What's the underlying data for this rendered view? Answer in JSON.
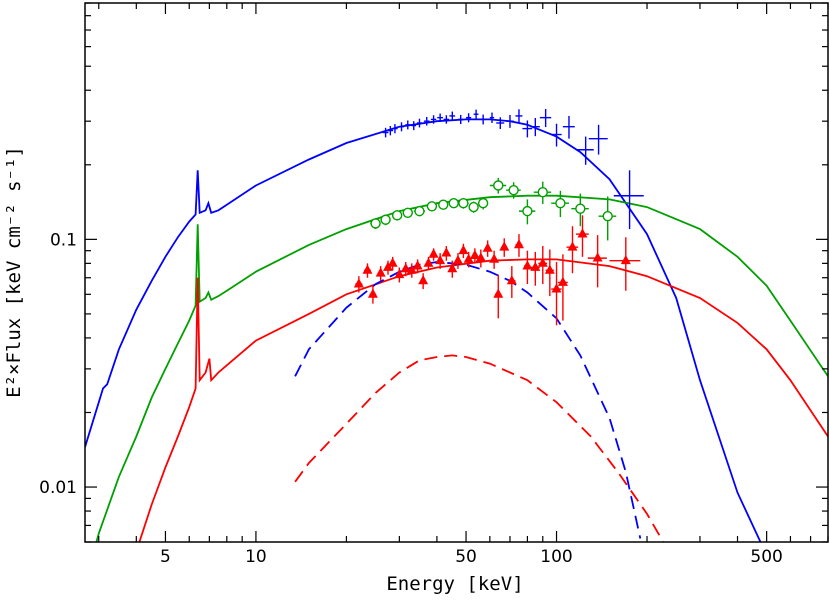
{
  "chart_data": {
    "type": "line",
    "title": "",
    "xlabel": "Energy [keV]",
    "ylabel": "E²×Flux [keV cm⁻² s⁻¹]",
    "x_scale": "log",
    "y_scale": "log",
    "xlim": [
      2.7,
      800
    ],
    "ylim": [
      0.006,
      0.9
    ],
    "grid": false,
    "legend": "none",
    "x_ticks": [
      {
        "value": 5,
        "label": "5"
      },
      {
        "value": 10,
        "label": "10"
      },
      {
        "value": 50,
        "label": "50"
      },
      {
        "value": 100,
        "label": "100"
      },
      {
        "value": 500,
        "label": "500"
      }
    ],
    "y_ticks": [
      {
        "value": 0.01,
        "label": "0.01"
      },
      {
        "value": 0.1,
        "label": "0.1"
      }
    ],
    "series": [
      {
        "kind": "model",
        "color": "#0000ff",
        "dash": false,
        "points": [
          [
            2.7,
            0.0145
          ],
          [
            3.0,
            0.022
          ],
          [
            3.1,
            0.025
          ],
          [
            3.2,
            0.026
          ],
          [
            3.5,
            0.036
          ],
          [
            4.0,
            0.052
          ],
          [
            4.5,
            0.068
          ],
          [
            5.0,
            0.085
          ],
          [
            5.5,
            0.102
          ],
          [
            6.0,
            0.118
          ],
          [
            6.3,
            0.126
          ],
          [
            6.4,
            0.19
          ],
          [
            6.5,
            0.128
          ],
          [
            6.8,
            0.131
          ],
          [
            6.95,
            0.14
          ],
          [
            7.1,
            0.128
          ],
          [
            7.5,
            0.131
          ],
          [
            8,
            0.138
          ],
          [
            10,
            0.165
          ],
          [
            15,
            0.21
          ],
          [
            20,
            0.245
          ],
          [
            30,
            0.285
          ],
          [
            40,
            0.3
          ],
          [
            50,
            0.305
          ],
          [
            60,
            0.305
          ],
          [
            70,
            0.3
          ],
          [
            80,
            0.29
          ],
          [
            100,
            0.26
          ],
          [
            120,
            0.225
          ],
          [
            150,
            0.175
          ],
          [
            200,
            0.105
          ],
          [
            250,
            0.058
          ],
          [
            300,
            0.027
          ],
          [
            400,
            0.0095
          ],
          [
            480,
            0.0059
          ]
        ]
      },
      {
        "kind": "model",
        "color": "#00a000",
        "dash": false,
        "points": [
          [
            2.8,
            0.0048
          ],
          [
            3.0,
            0.0065
          ],
          [
            3.5,
            0.011
          ],
          [
            4.0,
            0.016
          ],
          [
            4.5,
            0.023
          ],
          [
            5.0,
            0.03
          ],
          [
            5.5,
            0.038
          ],
          [
            6.0,
            0.047
          ],
          [
            6.3,
            0.054
          ],
          [
            6.4,
            0.115
          ],
          [
            6.5,
            0.056
          ],
          [
            6.8,
            0.058
          ],
          [
            6.95,
            0.061
          ],
          [
            7.1,
            0.057
          ],
          [
            7.5,
            0.059
          ],
          [
            8,
            0.062
          ],
          [
            10,
            0.074
          ],
          [
            15,
            0.095
          ],
          [
            20,
            0.11
          ],
          [
            30,
            0.13
          ],
          [
            40,
            0.14
          ],
          [
            60,
            0.148
          ],
          [
            80,
            0.15
          ],
          [
            100,
            0.15
          ],
          [
            150,
            0.145
          ],
          [
            200,
            0.135
          ],
          [
            300,
            0.11
          ],
          [
            400,
            0.085
          ],
          [
            500,
            0.065
          ],
          [
            600,
            0.047
          ],
          [
            800,
            0.028
          ]
        ]
      },
      {
        "kind": "model",
        "color": "#ff0000",
        "dash": false,
        "points": [
          [
            4.0,
            0.0055
          ],
          [
            4.5,
            0.0085
          ],
          [
            5.0,
            0.012
          ],
          [
            5.5,
            0.016
          ],
          [
            6.0,
            0.021
          ],
          [
            6.3,
            0.025
          ],
          [
            6.4,
            0.07
          ],
          [
            6.5,
            0.027
          ],
          [
            6.8,
            0.029
          ],
          [
            7.0,
            0.033
          ],
          [
            7.1,
            0.027
          ],
          [
            7.5,
            0.029
          ],
          [
            8,
            0.031
          ],
          [
            10,
            0.039
          ],
          [
            15,
            0.05
          ],
          [
            20,
            0.06
          ],
          [
            30,
            0.071
          ],
          [
            40,
            0.077
          ],
          [
            60,
            0.082
          ],
          [
            80,
            0.083
          ],
          [
            100,
            0.083
          ],
          [
            150,
            0.078
          ],
          [
            200,
            0.071
          ],
          [
            300,
            0.058
          ],
          [
            400,
            0.046
          ],
          [
            500,
            0.036
          ],
          [
            600,
            0.027
          ],
          [
            800,
            0.016
          ]
        ]
      },
      {
        "kind": "component",
        "color": "#0000ff",
        "dash": true,
        "points": [
          [
            13.5,
            0.028
          ],
          [
            15,
            0.036
          ],
          [
            20,
            0.053
          ],
          [
            25,
            0.066
          ],
          [
            30,
            0.074
          ],
          [
            35,
            0.079
          ],
          [
            40,
            0.081
          ],
          [
            45,
            0.08
          ],
          [
            50,
            0.079
          ],
          [
            60,
            0.074
          ],
          [
            70,
            0.068
          ],
          [
            80,
            0.061
          ],
          [
            100,
            0.048
          ],
          [
            120,
            0.034
          ],
          [
            150,
            0.019
          ],
          [
            170,
            0.0115
          ],
          [
            190,
            0.0062
          ]
        ]
      },
      {
        "kind": "component",
        "color": "#ff0000",
        "dash": true,
        "points": [
          [
            13.5,
            0.0105
          ],
          [
            15,
            0.0125
          ],
          [
            20,
            0.018
          ],
          [
            25,
            0.024
          ],
          [
            30,
            0.029
          ],
          [
            35,
            0.0325
          ],
          [
            40,
            0.0335
          ],
          [
            45,
            0.034
          ],
          [
            50,
            0.0335
          ],
          [
            60,
            0.0315
          ],
          [
            80,
            0.027
          ],
          [
            100,
            0.022
          ],
          [
            130,
            0.016
          ],
          [
            160,
            0.0115
          ],
          [
            200,
            0.0078
          ],
          [
            230,
            0.0058
          ]
        ]
      },
      {
        "kind": "data",
        "color": "#0000ff",
        "marker": "none",
        "points": [
          {
            "x": 27,
            "y": 0.27,
            "xerr": 0.6,
            "yerr": 0.012
          },
          {
            "x": 28,
            "y": 0.275,
            "xerr": 0.6,
            "yerr": 0.012
          },
          {
            "x": 29,
            "y": 0.28,
            "xerr": 0.6,
            "yerr": 0.012
          },
          {
            "x": 30.5,
            "y": 0.285,
            "xerr": 0.6,
            "yerr": 0.012
          },
          {
            "x": 32,
            "y": 0.29,
            "xerr": 0.6,
            "yerr": 0.012
          },
          {
            "x": 33.5,
            "y": 0.288,
            "xerr": 0.6,
            "yerr": 0.012
          },
          {
            "x": 35,
            "y": 0.295,
            "xerr": 0.7,
            "yerr": 0.012
          },
          {
            "x": 37,
            "y": 0.3,
            "xerr": 0.8,
            "yerr": 0.012
          },
          {
            "x": 39,
            "y": 0.305,
            "xerr": 0.8,
            "yerr": 0.012
          },
          {
            "x": 41,
            "y": 0.31,
            "xerr": 0.9,
            "yerr": 0.012
          },
          {
            "x": 43,
            "y": 0.305,
            "xerr": 0.9,
            "yerr": 0.012
          },
          {
            "x": 45,
            "y": 0.315,
            "xerr": 1.0,
            "yerr": 0.013
          },
          {
            "x": 48,
            "y": 0.305,
            "xerr": 1.0,
            "yerr": 0.013
          },
          {
            "x": 51,
            "y": 0.31,
            "xerr": 1.0,
            "yerr": 0.013
          },
          {
            "x": 54,
            "y": 0.32,
            "xerr": 1.0,
            "yerr": 0.014
          },
          {
            "x": 57,
            "y": 0.305,
            "xerr": 1.0,
            "yerr": 0.014
          },
          {
            "x": 61,
            "y": 0.31,
            "xerr": 1.0,
            "yerr": 0.015
          },
          {
            "x": 65,
            "y": 0.295,
            "xerr": 2,
            "yerr": 0.016
          },
          {
            "x": 70,
            "y": 0.3,
            "xerr": 2,
            "yerr": 0.018
          },
          {
            "x": 75,
            "y": 0.315,
            "xerr": 2,
            "yerr": 0.02
          },
          {
            "x": 80,
            "y": 0.28,
            "xerr": 3,
            "yerr": 0.022
          },
          {
            "x": 85,
            "y": 0.285,
            "xerr": 3,
            "yerr": 0.024
          },
          {
            "x": 92,
            "y": 0.31,
            "xerr": 4,
            "yerr": 0.026
          },
          {
            "x": 100,
            "y": 0.265,
            "xerr": 4,
            "yerr": 0.028
          },
          {
            "x": 110,
            "y": 0.285,
            "xerr": 5,
            "yerr": 0.03
          },
          {
            "x": 125,
            "y": 0.23,
            "xerr": 8,
            "yerr": 0.03
          },
          {
            "x": 138,
            "y": 0.255,
            "xerr": 10,
            "yerr": 0.035
          },
          {
            "x": 175,
            "y": 0.15,
            "xerr": 20,
            "yerr": 0.04
          }
        ]
      },
      {
        "kind": "data",
        "color": "#00a000",
        "marker": "open-circle",
        "points": [
          {
            "x": 25,
            "y": 0.116,
            "xerr": 1.0,
            "yerr": 0.006
          },
          {
            "x": 27,
            "y": 0.12,
            "xerr": 1.0,
            "yerr": 0.006
          },
          {
            "x": 29.5,
            "y": 0.125,
            "xerr": 1.0,
            "yerr": 0.006
          },
          {
            "x": 32,
            "y": 0.128,
            "xerr": 1.2,
            "yerr": 0.006
          },
          {
            "x": 35,
            "y": 0.13,
            "xerr": 1.5,
            "yerr": 0.006
          },
          {
            "x": 38.5,
            "y": 0.136,
            "xerr": 1.5,
            "yerr": 0.006
          },
          {
            "x": 42,
            "y": 0.138,
            "xerr": 1.5,
            "yerr": 0.006
          },
          {
            "x": 45.5,
            "y": 0.14,
            "xerr": 1.5,
            "yerr": 0.006
          },
          {
            "x": 49,
            "y": 0.14,
            "xerr": 2,
            "yerr": 0.007
          },
          {
            "x": 53,
            "y": 0.135,
            "xerr": 2,
            "yerr": 0.007
          },
          {
            "x": 57,
            "y": 0.14,
            "xerr": 2,
            "yerr": 0.008
          },
          {
            "x": 64,
            "y": 0.165,
            "xerr": 4,
            "yerr": 0.012
          },
          {
            "x": 72,
            "y": 0.158,
            "xerr": 4,
            "yerr": 0.012
          },
          {
            "x": 80,
            "y": 0.13,
            "xerr": 5,
            "yerr": 0.015
          },
          {
            "x": 90,
            "y": 0.155,
            "xerr": 6,
            "yerr": 0.016
          },
          {
            "x": 103,
            "y": 0.14,
            "xerr": 7,
            "yerr": 0.017
          },
          {
            "x": 120,
            "y": 0.133,
            "xerr": 8,
            "yerr": 0.02
          },
          {
            "x": 148,
            "y": 0.124,
            "xerr": 10,
            "yerr": 0.025
          }
        ]
      },
      {
        "kind": "data",
        "color": "#ff0000",
        "marker": "filled-triangle",
        "points": [
          {
            "x": 22,
            "y": 0.066,
            "xerr": 0.6,
            "yerr": 0.005
          },
          {
            "x": 23.5,
            "y": 0.075,
            "xerr": 0.6,
            "yerr": 0.005
          },
          {
            "x": 24.5,
            "y": 0.06,
            "xerr": 0.6,
            "yerr": 0.005
          },
          {
            "x": 26,
            "y": 0.073,
            "xerr": 0.6,
            "yerr": 0.005
          },
          {
            "x": 27.5,
            "y": 0.077,
            "xerr": 0.6,
            "yerr": 0.005
          },
          {
            "x": 28.5,
            "y": 0.08,
            "xerr": 0.6,
            "yerr": 0.005
          },
          {
            "x": 30,
            "y": 0.072,
            "xerr": 0.6,
            "yerr": 0.005
          },
          {
            "x": 31.5,
            "y": 0.076,
            "xerr": 0.7,
            "yerr": 0.005
          },
          {
            "x": 33,
            "y": 0.075,
            "xerr": 0.7,
            "yerr": 0.005
          },
          {
            "x": 34.5,
            "y": 0.078,
            "xerr": 0.7,
            "yerr": 0.005
          },
          {
            "x": 36,
            "y": 0.068,
            "xerr": 0.7,
            "yerr": 0.005
          },
          {
            "x": 37.5,
            "y": 0.08,
            "xerr": 0.8,
            "yerr": 0.005
          },
          {
            "x": 39,
            "y": 0.087,
            "xerr": 0.8,
            "yerr": 0.005
          },
          {
            "x": 41,
            "y": 0.082,
            "xerr": 0.8,
            "yerr": 0.006
          },
          {
            "x": 43,
            "y": 0.088,
            "xerr": 0.8,
            "yerr": 0.006
          },
          {
            "x": 45,
            "y": 0.076,
            "xerr": 0.9,
            "yerr": 0.006
          },
          {
            "x": 47,
            "y": 0.082,
            "xerr": 0.9,
            "yerr": 0.006
          },
          {
            "x": 49,
            "y": 0.09,
            "xerr": 1.0,
            "yerr": 0.006
          },
          {
            "x": 51,
            "y": 0.083,
            "xerr": 1.0,
            "yerr": 0.006
          },
          {
            "x": 53.5,
            "y": 0.086,
            "xerr": 1.0,
            "yerr": 0.006
          },
          {
            "x": 56,
            "y": 0.084,
            "xerr": 1.0,
            "yerr": 0.007
          },
          {
            "x": 59,
            "y": 0.092,
            "xerr": 1.0,
            "yerr": 0.007
          },
          {
            "x": 62,
            "y": 0.083,
            "xerr": 1.2,
            "yerr": 0.007
          },
          {
            "x": 64,
            "y": 0.06,
            "xerr": 1.5,
            "yerr": 0.012
          },
          {
            "x": 67,
            "y": 0.093,
            "xerr": 1.5,
            "yerr": 0.008
          },
          {
            "x": 71,
            "y": 0.068,
            "xerr": 2,
            "yerr": 0.01
          },
          {
            "x": 75,
            "y": 0.095,
            "xerr": 2,
            "yerr": 0.01
          },
          {
            "x": 80,
            "y": 0.078,
            "xerr": 2,
            "yerr": 0.012
          },
          {
            "x": 85,
            "y": 0.077,
            "xerr": 3,
            "yerr": 0.012
          },
          {
            "x": 90,
            "y": 0.08,
            "xerr": 3,
            "yerr": 0.014
          },
          {
            "x": 95,
            "y": 0.075,
            "xerr": 3,
            "yerr": 0.016
          },
          {
            "x": 100,
            "y": 0.063,
            "xerr": 4,
            "yerr": 0.018
          },
          {
            "x": 105,
            "y": 0.067,
            "xerr": 4,
            "yerr": 0.02
          },
          {
            "x": 113,
            "y": 0.093,
            "xerr": 5,
            "yerr": 0.02
          },
          {
            "x": 122,
            "y": 0.105,
            "xerr": 6,
            "yerr": 0.02
          },
          {
            "x": 137,
            "y": 0.084,
            "xerr": 10,
            "yerr": 0.02
          },
          {
            "x": 170,
            "y": 0.082,
            "xerr": 20,
            "yerr": 0.02
          }
        ]
      }
    ]
  }
}
